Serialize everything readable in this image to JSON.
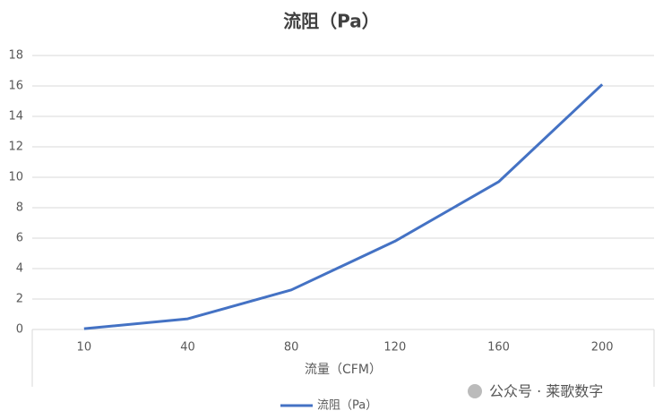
{
  "chart_data": {
    "type": "line",
    "title": "流阻（Pa）",
    "x_label": "流量（CFM）",
    "categories": [
      "10",
      "40",
      "80",
      "120",
      "160",
      "200"
    ],
    "series": [
      {
        "name": "流阻（Pa）",
        "color": "#4472c4",
        "values": [
          0.05,
          0.7,
          2.6,
          5.8,
          9.7,
          16.1
        ]
      }
    ],
    "ylim": [
      0,
      18
    ],
    "yticks": [
      0,
      2,
      4,
      6,
      8,
      10,
      12,
      14,
      16,
      18
    ],
    "grid": true,
    "legend": "bottom",
    "watermark": "公众号 · 莱歌数字"
  }
}
